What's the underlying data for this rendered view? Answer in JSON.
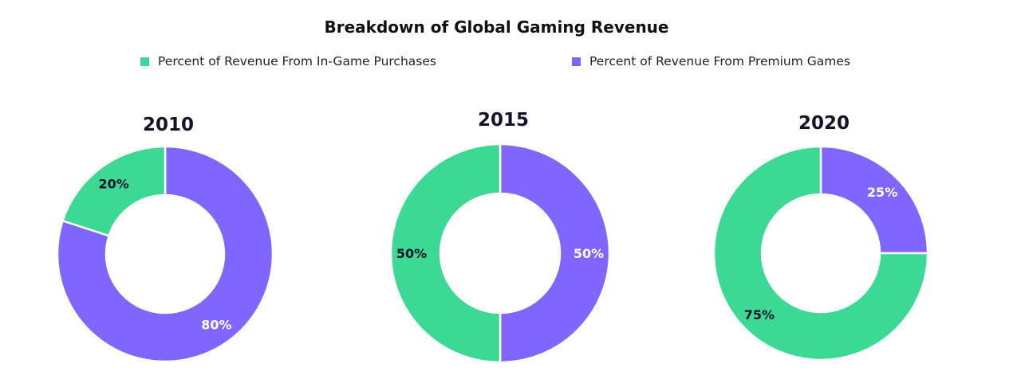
{
  "chart_data": {
    "type": "pie",
    "title": "Breakdown of Global Gaming Revenue",
    "legend": {
      "placement": "top",
      "entries": [
        {
          "label": "Percent of Revenue From In-Game Purchases",
          "color": "#3bd994"
        },
        {
          "label": "Percent of Revenue From Premium Games",
          "color": "#8066ff"
        }
      ]
    },
    "charts": [
      {
        "title": "2010",
        "slices": [
          {
            "series": "Percent of Revenue From Premium Games",
            "value": 80,
            "label": "80%",
            "color": "#8066ff"
          },
          {
            "series": "Percent of Revenue From In-Game Purchases",
            "value": 20,
            "label": "20%",
            "color": "#3bd994"
          }
        ]
      },
      {
        "title": "2015",
        "slices": [
          {
            "series": "Percent of Revenue From Premium Games",
            "value": 50,
            "label": "50%",
            "color": "#8066ff"
          },
          {
            "series": "Percent of Revenue From In-Game Purchases",
            "value": 50,
            "label": "50%",
            "color": "#3bd994"
          }
        ]
      },
      {
        "title": "2020",
        "slices": [
          {
            "series": "Percent of Revenue From Premium Games",
            "value": 25,
            "label": "25%",
            "color": "#8066ff"
          },
          {
            "series": "Percent of Revenue From In-Game Purchases",
            "value": 75,
            "label": "75%",
            "color": "#3bd994"
          }
        ]
      }
    ]
  }
}
